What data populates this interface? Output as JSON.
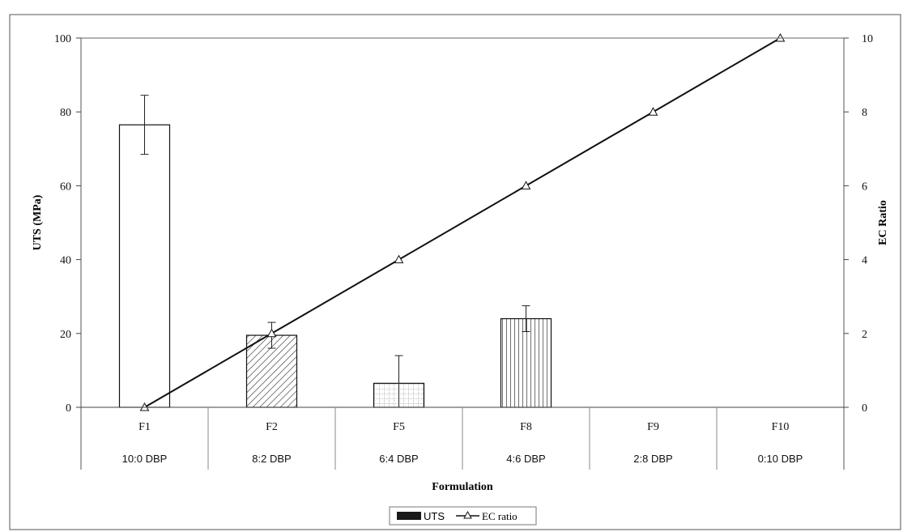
{
  "chart_data": {
    "type": "bar",
    "categories": [
      "F1",
      "F2",
      "F5",
      "F8",
      "F9",
      "F10"
    ],
    "category_sublabels": [
      "10:0 DBP",
      "8:2 DBP",
      "6:4 DBP",
      "4:6 DBP",
      "2:8 DBP",
      "0:10 DBP"
    ],
    "xlabel": "Formulation",
    "ylabel": "UTS (MPa)",
    "y2label": "EC Ratio",
    "ylim": [
      0,
      100
    ],
    "y2lim": [
      0,
      10
    ],
    "yticks": [
      0,
      20,
      40,
      60,
      80,
      100
    ],
    "y2ticks": [
      0,
      2,
      4,
      6,
      8,
      10
    ],
    "grid": false,
    "legend_position": "bottom-center",
    "series": [
      {
        "name": "UTS",
        "kind": "bar",
        "axis": "left",
        "values": [
          76.5,
          19.5,
          6.5,
          24.0,
          null,
          null
        ],
        "errors": [
          8.0,
          3.5,
          7.5,
          3.5,
          null,
          null
        ],
        "fill_patterns": [
          "none",
          "diagonal-hatch",
          "dotted-grid",
          "vertical-lines",
          "none",
          "none"
        ],
        "legend_color": "#1a1a1a"
      },
      {
        "name": "EC ratio",
        "kind": "line",
        "axis": "right",
        "marker": "triangle",
        "values": [
          0,
          2,
          4,
          6,
          8,
          10
        ],
        "color": "#111111"
      }
    ]
  }
}
